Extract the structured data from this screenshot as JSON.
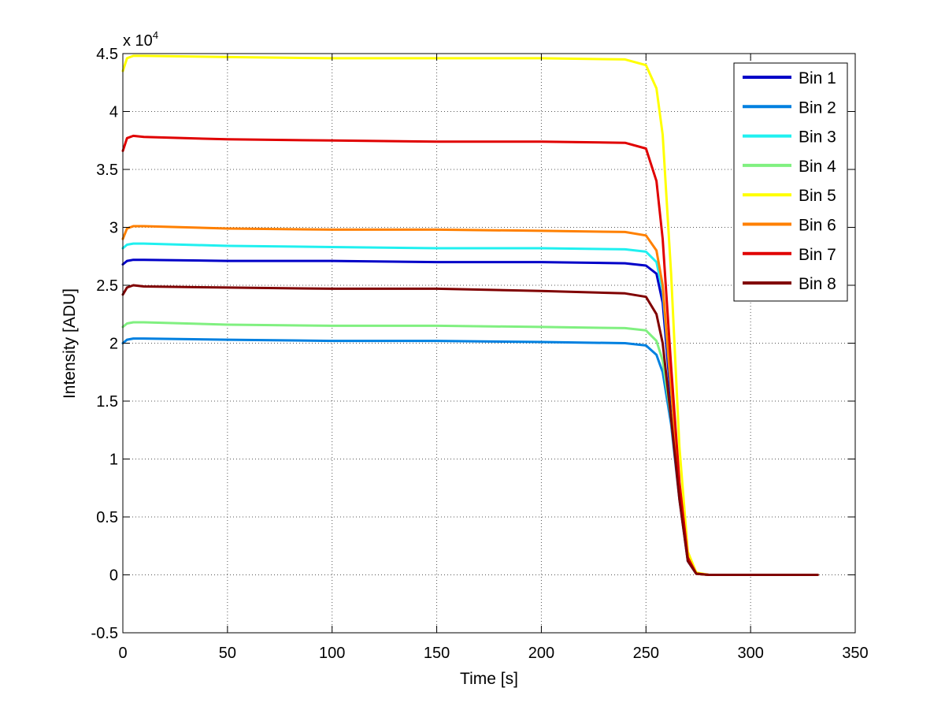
{
  "chart_data": {
    "type": "line",
    "title": "",
    "xlabel": "Time [s]",
    "ylabel": "Intensity [ADU]",
    "y_exponent_label": "x 10",
    "y_exponent_power": "4",
    "xlim": [
      0,
      350
    ],
    "ylim": [
      -0.5,
      4.5
    ],
    "xticks": [
      0,
      50,
      100,
      150,
      200,
      250,
      300,
      350
    ],
    "xtick_labels": [
      "0",
      "50",
      "100",
      "150",
      "200",
      "250",
      "300",
      "350"
    ],
    "yticks": [
      -0.5,
      0,
      0.5,
      1,
      1.5,
      2,
      2.5,
      3,
      3.5,
      4,
      4.5
    ],
    "ytick_labels": [
      "-0.5",
      "0",
      "0.5",
      "1",
      "1.5",
      "2",
      "2.5",
      "3",
      "3.5",
      "4",
      "4.5"
    ],
    "grid": true,
    "legend_position": "top-right",
    "series": [
      {
        "name": "Bin 1",
        "color": "#0000c8",
        "x": [
          0,
          2,
          5,
          10,
          50,
          100,
          150,
          200,
          240,
          250,
          255,
          258,
          262,
          266,
          270,
          274,
          280,
          300,
          332
        ],
        "y": [
          2.68,
          2.71,
          2.72,
          2.72,
          2.71,
          2.71,
          2.7,
          2.7,
          2.69,
          2.67,
          2.6,
          2.35,
          1.5,
          0.7,
          0.12,
          0.01,
          0,
          0,
          0
        ]
      },
      {
        "name": "Bin 2",
        "color": "#0080e0",
        "x": [
          0,
          2,
          5,
          10,
          50,
          100,
          150,
          200,
          240,
          250,
          255,
          258,
          262,
          266,
          270,
          274,
          280,
          300,
          332
        ],
        "y": [
          2.0,
          2.03,
          2.04,
          2.04,
          2.03,
          2.02,
          2.02,
          2.01,
          2.0,
          1.98,
          1.9,
          1.75,
          1.3,
          0.65,
          0.12,
          0.01,
          0,
          0,
          0
        ]
      },
      {
        "name": "Bin 3",
        "color": "#20f0f0",
        "x": [
          0,
          2,
          5,
          10,
          50,
          100,
          150,
          200,
          240,
          250,
          255,
          258,
          262,
          266,
          270,
          274,
          280,
          300,
          332
        ],
        "y": [
          2.82,
          2.85,
          2.86,
          2.86,
          2.84,
          2.83,
          2.82,
          2.82,
          2.81,
          2.79,
          2.7,
          2.45,
          1.6,
          0.75,
          0.14,
          0.01,
          0,
          0,
          0
        ]
      },
      {
        "name": "Bin 4",
        "color": "#80f080",
        "x": [
          0,
          2,
          5,
          10,
          50,
          100,
          150,
          200,
          240,
          250,
          255,
          258,
          262,
          266,
          270,
          274,
          280,
          300,
          332
        ],
        "y": [
          2.14,
          2.17,
          2.18,
          2.18,
          2.16,
          2.15,
          2.15,
          2.14,
          2.13,
          2.11,
          2.02,
          1.85,
          1.35,
          0.68,
          0.13,
          0.01,
          0,
          0,
          0
        ]
      },
      {
        "name": "Bin 5",
        "color": "#ffff00",
        "x": [
          0,
          2,
          5,
          10,
          50,
          100,
          150,
          200,
          240,
          250,
          255,
          258,
          262,
          266,
          270,
          274,
          280,
          300,
          332
        ],
        "y": [
          4.35,
          4.46,
          4.48,
          4.48,
          4.47,
          4.46,
          4.46,
          4.46,
          4.45,
          4.4,
          4.2,
          3.8,
          2.6,
          1.1,
          0.2,
          0.02,
          0,
          0,
          0
        ]
      },
      {
        "name": "Bin 6",
        "color": "#ff8000",
        "x": [
          0,
          2,
          5,
          10,
          50,
          100,
          150,
          200,
          240,
          250,
          255,
          258,
          262,
          266,
          270,
          274,
          280,
          300,
          332
        ],
        "y": [
          2.9,
          2.99,
          3.01,
          3.01,
          2.99,
          2.98,
          2.98,
          2.97,
          2.96,
          2.93,
          2.8,
          2.5,
          1.6,
          0.75,
          0.14,
          0.01,
          0,
          0,
          0
        ]
      },
      {
        "name": "Bin 7",
        "color": "#e00000",
        "x": [
          0,
          2,
          5,
          10,
          50,
          100,
          150,
          200,
          240,
          250,
          255,
          258,
          262,
          266,
          270,
          274,
          280,
          300,
          332
        ],
        "y": [
          3.66,
          3.77,
          3.79,
          3.78,
          3.76,
          3.75,
          3.74,
          3.74,
          3.73,
          3.68,
          3.4,
          2.9,
          1.8,
          0.8,
          0.15,
          0.01,
          0,
          0,
          0
        ]
      },
      {
        "name": "Bin 8",
        "color": "#800000",
        "x": [
          0,
          2,
          5,
          10,
          50,
          100,
          150,
          200,
          240,
          250,
          255,
          258,
          262,
          266,
          270,
          274,
          280,
          300,
          332
        ],
        "y": [
          2.42,
          2.48,
          2.5,
          2.49,
          2.48,
          2.47,
          2.47,
          2.45,
          2.43,
          2.4,
          2.25,
          2.0,
          1.35,
          0.65,
          0.12,
          0.01,
          0,
          0,
          0
        ]
      }
    ]
  }
}
